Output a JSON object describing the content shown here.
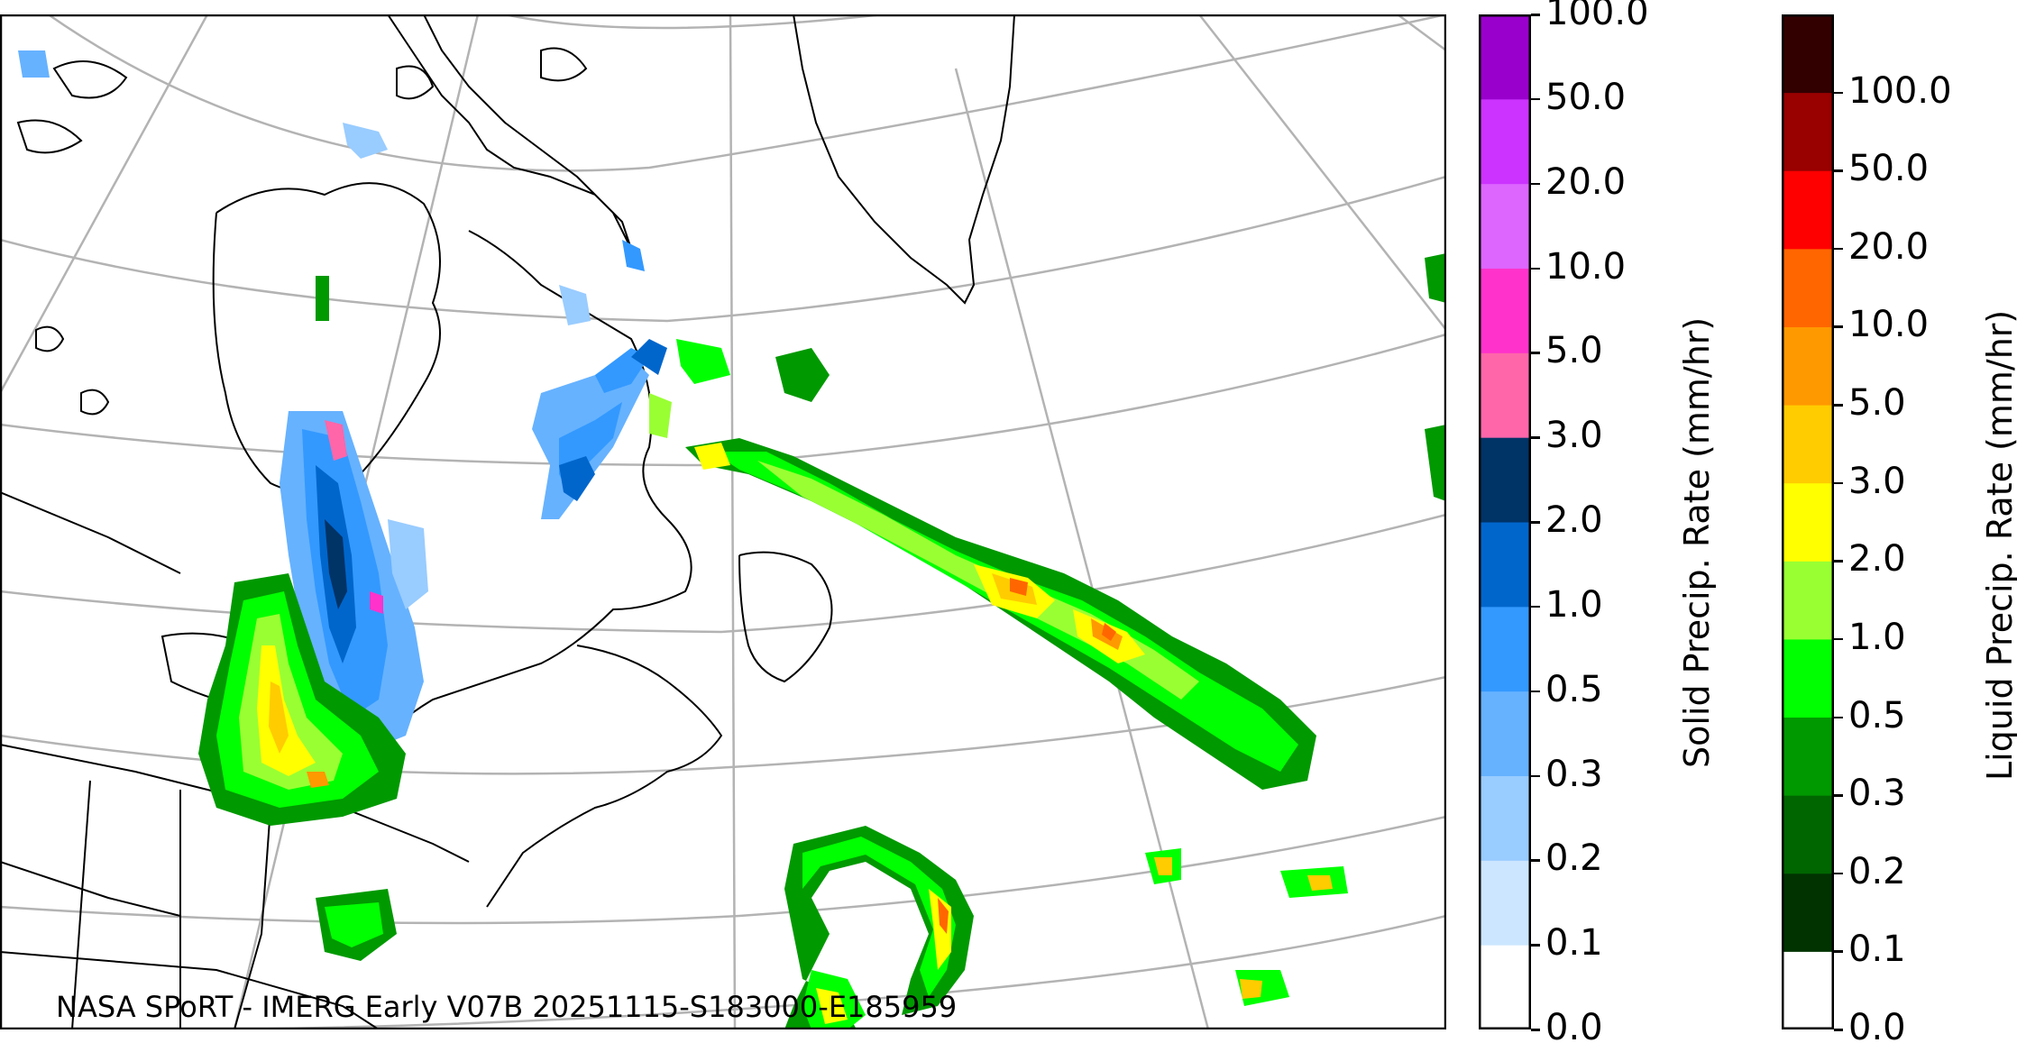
{
  "credit": "NASA SPoRT - IMERG Early V07B 20251115-S183000-E185959",
  "solid_colorbar": {
    "label": "Solid Precip. Rate (mm/hr)",
    "ticks": [
      "0.0",
      "0.1",
      "0.2",
      "0.3",
      "0.5",
      "1.0",
      "2.0",
      "3.0",
      "5.0",
      "10.0",
      "20.0",
      "50.0",
      "100.0"
    ],
    "colors": [
      "#ffffff",
      "#cce6ff",
      "#99ccff",
      "#66b2ff",
      "#3399ff",
      "#0066cc",
      "#003366",
      "#ff66aa",
      "#ff33cc",
      "#dd66ff",
      "#cc33ff",
      "#9900cc"
    ]
  },
  "liquid_colorbar": {
    "label": "Liquid Precip. Rate (mm/hr)",
    "ticks": [
      "0.0",
      "0.1",
      "0.2",
      "0.3",
      "0.5",
      "1.0",
      "2.0",
      "3.0",
      "5.0",
      "10.0",
      "20.0",
      "50.0",
      "100.0"
    ],
    "colors": [
      "#ffffff",
      "#003300",
      "#006600",
      "#009900",
      "#00ff00",
      "#99ff33",
      "#ffff00",
      "#ffcc00",
      "#ff9900",
      "#ff6600",
      "#ff0000",
      "#990000",
      "#330000"
    ]
  }
}
